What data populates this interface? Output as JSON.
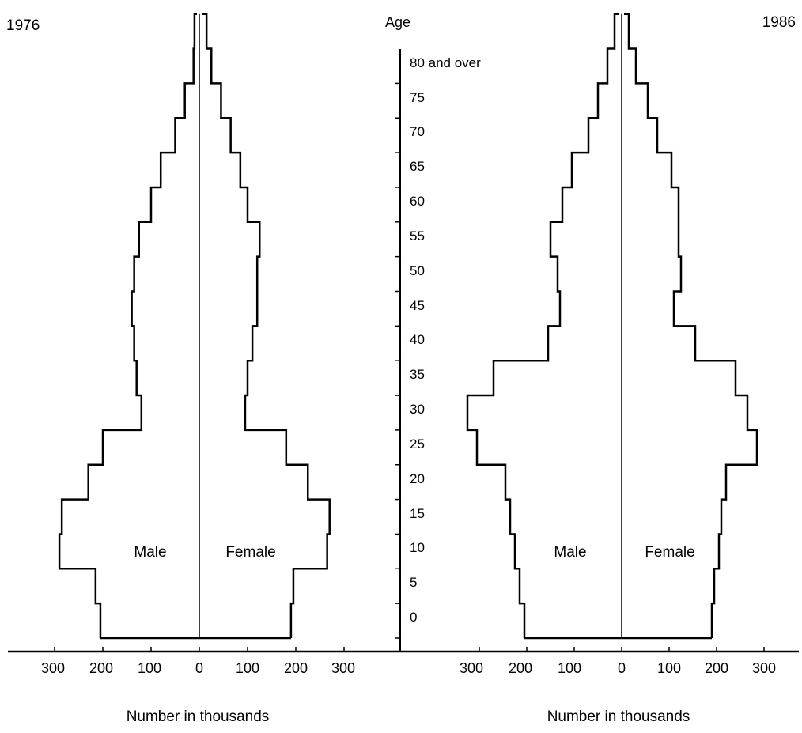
{
  "chart_data": {
    "type": "population-pyramid",
    "y_axis": {
      "label": "Age",
      "ticks": [
        "0",
        "5",
        "10",
        "15",
        "20",
        "25",
        "30",
        "35",
        "40",
        "45",
        "50",
        "55",
        "60",
        "65",
        "70",
        "75",
        "80 and over"
      ],
      "range": [
        0,
        90
      ]
    },
    "x_axis": {
      "label": "Number in thousands",
      "ticks": [
        "300",
        "200",
        "100",
        "0",
        "100",
        "200",
        "300"
      ],
      "range": [
        -300,
        300
      ]
    },
    "age_groups": [
      "0-4",
      "5-9",
      "10-14",
      "15-19",
      "20-24",
      "25-29",
      "30-34",
      "35-39",
      "40-44",
      "45-49",
      "50-54",
      "55-59",
      "60-64",
      "65-69",
      "70-74",
      "75-79",
      "80-84",
      "85+"
    ],
    "pyramids": [
      {
        "year": "1976",
        "series": [
          {
            "name": "Male",
            "values": [
              205,
              215,
              290,
              285,
              230,
              200,
              120,
              130,
              135,
              140,
              135,
              125,
              100,
              80,
              50,
              30,
              12,
              10
            ]
          },
          {
            "name": "Female",
            "values": [
              190,
              195,
              265,
              270,
              225,
              180,
              95,
              100,
              110,
              120,
              120,
              125,
              100,
              85,
              65,
              45,
              25,
              15
            ]
          }
        ]
      },
      {
        "year": "1986",
        "series": [
          {
            "name": "Male",
            "values": [
              205,
              215,
              225,
              235,
              245,
              305,
              325,
              270,
              155,
              130,
              135,
              150,
              125,
              105,
              70,
              50,
              30,
              15
            ]
          },
          {
            "name": "Female",
            "values": [
              190,
              195,
              205,
              210,
              220,
              285,
              265,
              240,
              155,
              110,
              125,
              120,
              120,
              105,
              75,
              55,
              30,
              15
            ]
          }
        ]
      }
    ]
  }
}
